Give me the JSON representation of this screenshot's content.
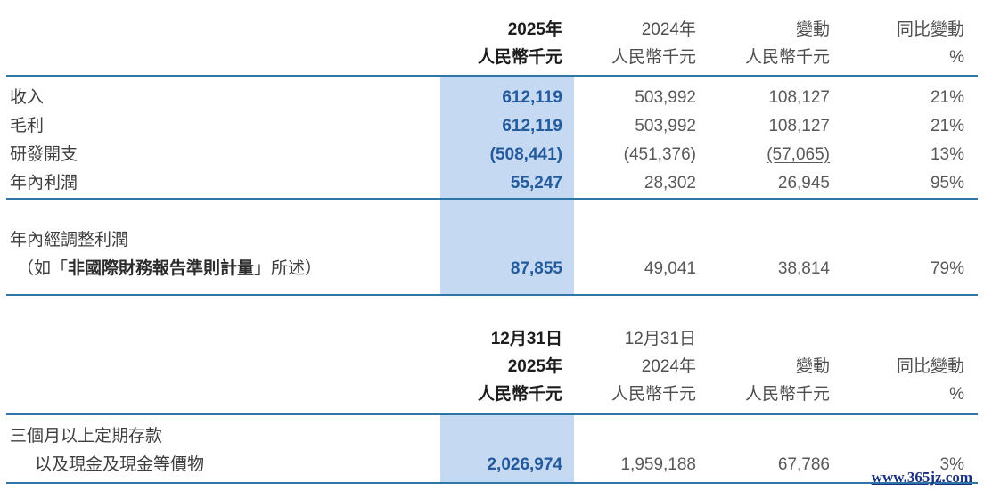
{
  "colors": {
    "highlight_band": "#c6d9f2",
    "rule_line": "#2f76a8",
    "value_2025_text": "#235b9d",
    "label_text": "#3e3e3e",
    "secondary_value_text": "#595959",
    "watermark_text": "#1b2f80"
  },
  "table1": {
    "header": {
      "col1_line1": "2025年",
      "col1_line2": "人民幣千元",
      "col2_line1": "2024年",
      "col2_line2": "人民幣千元",
      "col3_line1": "變動",
      "col3_line2": "人民幣千元",
      "col4_line1": "同比變動",
      "col4_line2": "%"
    },
    "rows": [
      {
        "label": "收入",
        "y2025": "612,119",
        "y2024": "503,992",
        "change": "108,127",
        "yoy": "21%"
      },
      {
        "label": "毛利",
        "y2025": "612,119",
        "y2024": "503,992",
        "change": "108,127",
        "yoy": "21%"
      },
      {
        "label": "研發開支",
        "y2025": "(508,441)",
        "y2024": "(451,376)",
        "change": "(57,065)",
        "yoy": "13%"
      },
      {
        "label": "年內利潤",
        "y2025": "55,247",
        "y2024": "28,302",
        "change": "26,945",
        "yoy": "95%"
      }
    ],
    "adjusted_row": {
      "label_line1": "年內經調整利潤",
      "label_line2_prefix": "（如「",
      "label_line2_bold": "非國際財務報告準則計量",
      "label_line2_suffix": "」所述）",
      "y2025": "87,855",
      "y2024": "49,041",
      "change": "38,814",
      "yoy": "79%"
    }
  },
  "table2": {
    "header": {
      "col1_line1": "12月31日",
      "col1_line2": "2025年",
      "col1_line3": "人民幣千元",
      "col2_line1": "12月31日",
      "col2_line2": "2024年",
      "col2_line3": "人民幣千元",
      "col3_line1": "",
      "col3_line2": "變動",
      "col3_line3": "人民幣千元",
      "col4_line1": "",
      "col4_line2": "同比變動",
      "col4_line3": "%"
    },
    "row": {
      "label_line1": "三個月以上定期存款",
      "label_line2": "以及現金及現金等價物",
      "y2025": "2,026,974",
      "y2024": "1,959,188",
      "change": "67,786",
      "yoy": "3%"
    }
  },
  "watermark": "www.365jz.com"
}
